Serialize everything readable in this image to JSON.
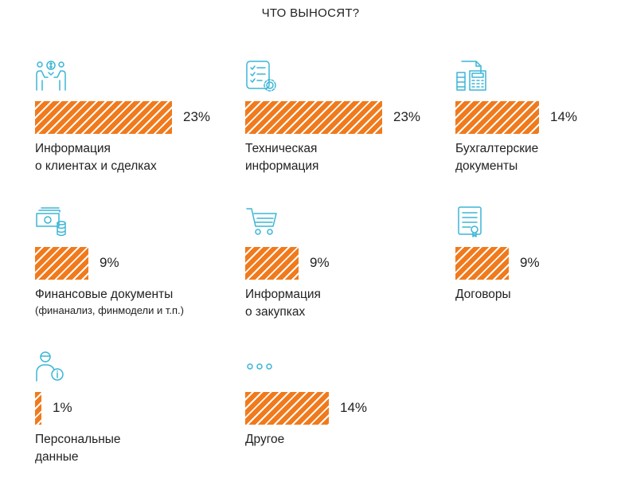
{
  "title": "ЧТО ВЫНОСЯТ?",
  "colors": {
    "bar": "#f07a1c",
    "icon": "#3bb6d6",
    "text": "#222222"
  },
  "chart_data": {
    "type": "bar",
    "title": "ЧТО ВЫНОСЯТ?",
    "unit": "%",
    "xlim": [
      0,
      23
    ],
    "grid": false,
    "categories": [
      "Информация о клиентах и сделках",
      "Техническая информация",
      "Бухгалтерские документы",
      "Финансовые документы",
      "Информация о закупках",
      "Договоры",
      "Персональные данные",
      "Другое"
    ],
    "items": [
      {
        "icon": "client-deal-icon",
        "value": 23,
        "value_label": "23%",
        "label_lines": [
          "Информация",
          "о клиентах и сделках"
        ],
        "sublabel": ""
      },
      {
        "icon": "technical-doc-icon",
        "value": 23,
        "value_label": "23%",
        "label_lines": [
          "Техническая",
          "информация"
        ],
        "sublabel": ""
      },
      {
        "icon": "accounting-icon",
        "value": 14,
        "value_label": "14%",
        "label_lines": [
          "Бухгалтерские",
          "документы"
        ],
        "sublabel": ""
      },
      {
        "icon": "money-icon",
        "value": 9,
        "value_label": "9%",
        "label_lines": [
          "Финансовые документы",
          ""
        ],
        "sublabel": "(финанализ, финмодели и т.п.)"
      },
      {
        "icon": "shopping-cart-icon",
        "value": 9,
        "value_label": "9%",
        "label_lines": [
          "Информация",
          "о закупках"
        ],
        "sublabel": ""
      },
      {
        "icon": "contract-icon",
        "value": 9,
        "value_label": "9%",
        "label_lines": [
          "Договоры",
          ""
        ],
        "sublabel": ""
      },
      {
        "icon": "personal-data-icon",
        "value": 1,
        "value_label": "1%",
        "label_lines": [
          "Персональные",
          "данные"
        ],
        "sublabel": ""
      },
      {
        "icon": "more-dots-icon",
        "value": 14,
        "value_label": "14%",
        "label_lines": [
          "Другое",
          ""
        ],
        "sublabel": ""
      }
    ]
  }
}
